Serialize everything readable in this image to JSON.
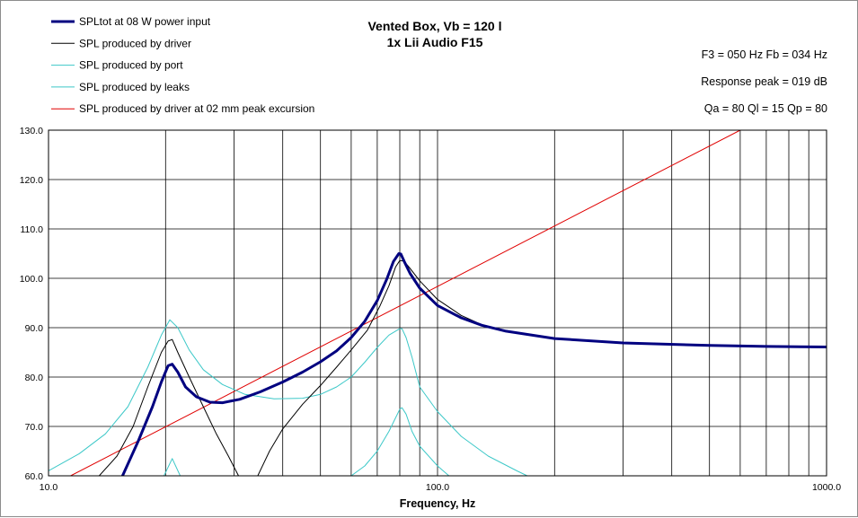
{
  "chart_data": {
    "type": "line",
    "title": [
      "Vented Box, Vb = 120 l",
      "1x Lii Audio F15"
    ],
    "xlabel": "Frequency, Hz",
    "ylabel": "",
    "xscale": "log",
    "xlim": [
      10,
      1000
    ],
    "ylim": [
      60,
      130
    ],
    "x_ticks": [
      "10.0",
      "100.0",
      "1000.0"
    ],
    "y_ticks": [
      "60.0",
      "70.0",
      "80.0",
      "90.0",
      "100.0",
      "110.0",
      "120.0",
      "130.0"
    ],
    "grid": true,
    "legend_position": "top-left",
    "info": [
      "F3 = 050  Hz  Fb = 034  Hz",
      "Response  peak = 019  dB",
      "Qa = 80  Ql = 15  Qp = 80"
    ],
    "series": [
      {
        "name": "SPLtot at 08 W power input",
        "color": "#000080",
        "width": 3,
        "x": [
          15.5,
          17,
          18.5,
          19.5,
          20.3,
          20.8,
          21.5,
          22.5,
          24,
          26,
          28,
          31,
          35,
          40,
          45,
          50,
          55,
          60,
          65,
          70,
          74,
          77,
          79.5,
          80.5,
          82,
          85,
          90,
          100,
          115,
          130,
          150,
          200,
          300,
          500,
          700,
          1000
        ],
        "y": [
          60,
          67,
          74,
          79,
          82.3,
          82.6,
          81,
          78,
          76,
          74.9,
          74.8,
          75.5,
          77,
          79,
          81,
          83.1,
          85.3,
          88,
          91.3,
          95.5,
          99.8,
          103.4,
          105,
          104.9,
          103.5,
          101,
          98,
          94.5,
          92,
          90.5,
          89.3,
          87.8,
          86.9,
          86.4,
          86.2,
          86.1
        ]
      },
      {
        "name": "SPL produced by driver",
        "color": "#000000",
        "width": 1,
        "x": [
          13.5,
          15,
          16.5,
          18,
          19.5,
          20.3,
          20.8,
          21.5,
          23,
          25,
          27,
          29,
          30.8,
          34.5,
          37,
          40,
          45,
          50,
          55,
          60,
          66,
          71,
          75,
          78,
          80,
          82,
          85,
          90,
          100,
          115,
          130,
          150,
          200,
          300,
          500,
          700,
          1000
        ],
        "y": [
          60,
          64,
          70,
          78,
          85,
          87.3,
          87.6,
          85,
          80,
          74,
          68.5,
          64,
          60,
          60,
          65,
          69.5,
          74.5,
          78.3,
          82,
          85.5,
          89.5,
          94.3,
          98.5,
          102.3,
          103.6,
          103.5,
          102,
          99.5,
          95.7,
          92.5,
          90.6,
          89.3,
          87.8,
          86.9,
          86.4,
          86.2,
          86.1
        ]
      },
      {
        "name": "SPL produced by port",
        "color": "#3cc8c8",
        "width": 1,
        "x": [
          10,
          12,
          14,
          16,
          18,
          19.5,
          20.5,
          21.5,
          23,
          25,
          28,
          32,
          38,
          45,
          50,
          55,
          60,
          65,
          70,
          75,
          80,
          81,
          83,
          86,
          90,
          100,
          115,
          135,
          160,
          170
        ],
        "y": [
          61,
          64.5,
          68.5,
          74,
          82,
          88.5,
          91.6,
          90,
          85.5,
          81.5,
          78.5,
          76.5,
          75.6,
          75.7,
          76.5,
          78,
          80,
          83,
          86,
          88.5,
          89.8,
          89.8,
          88,
          84,
          78,
          73,
          68,
          64,
          61,
          60
        ]
      },
      {
        "name": "SPL produced by leaks",
        "color": "#3cc8c8",
        "width": 1,
        "x": [
          19.8,
          20.8,
          21.8,
          60,
          65,
          70,
          75,
          80,
          81,
          83,
          86,
          90,
          100,
          107
        ],
        "y": [
          60,
          63.5,
          60,
          60,
          62,
          65,
          69,
          73.5,
          73.8,
          72.5,
          69,
          66,
          62,
          60
        ]
      },
      {
        "name": "SPL produced by driver at 02 mm peak excursion",
        "color": "#e00000",
        "width": 1,
        "x": [
          11.4,
          600
        ],
        "y": [
          60,
          130
        ]
      }
    ]
  }
}
